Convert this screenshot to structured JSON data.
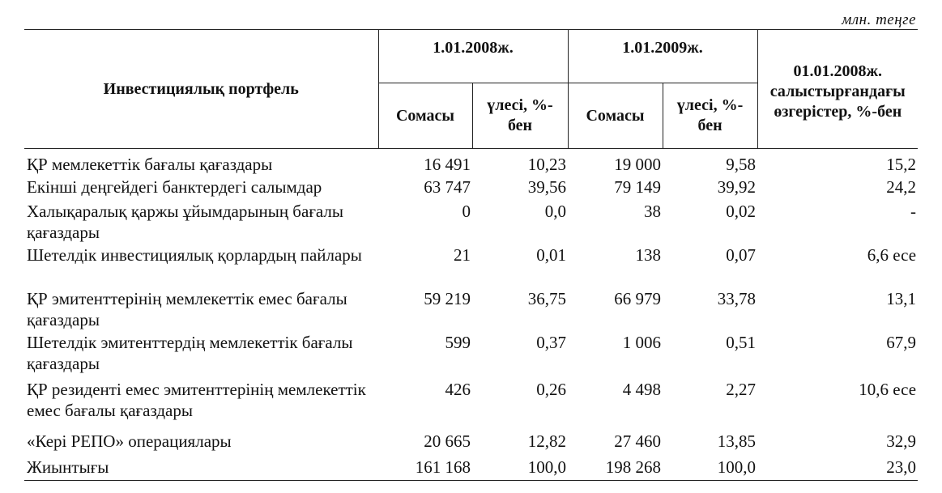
{
  "unit": "млн. теңге",
  "header": {
    "portfolio": "Инвестициялық портфель",
    "period1": "1.01.2008ж.",
    "period2": "1.01.2009ж.",
    "change": "01.01.2008ж. салыстырғандағы өзгерістер, %-бен",
    "amount": "Сомасы",
    "share": "үлесі, %-бен"
  },
  "rows": [
    {
      "name": "ҚР мемлекеттік бағалы қағаздары",
      "a1": "16 491",
      "s1": "10,23",
      "a2": "19 000",
      "s2": "9,58",
      "chg": "15,2"
    },
    {
      "name": "Екінші деңгейдегі банктердегі салымдар",
      "a1": "63 747",
      "s1": "39,56",
      "a2": "79 149",
      "s2": "39,92",
      "chg": "24,2"
    },
    {
      "name": "Халықаралық қаржы ұйымдарының бағалы қағаздары",
      "a1": "0",
      "s1": "0,0",
      "a2": "38",
      "s2": "0,02",
      "chg": "-"
    },
    {
      "name": "Шетелдік инвестициялық қорлардың пайлары",
      "a1": "21",
      "s1": "0,01",
      "a2": "138",
      "s2": "0,07",
      "chg": "6,6 есе"
    },
    {
      "name": "ҚР эмитенттерінің мемлекеттік емес бағалы қағаздары",
      "a1": "59 219",
      "s1": "36,75",
      "a2": "66 979",
      "s2": "33,78",
      "chg": "13,1"
    },
    {
      "name": "Шетелдік эмитенттердің мемлекеттік бағалы қағаздары",
      "a1": "599",
      "s1": "0,37",
      "a2": "1 006",
      "s2": "0,51",
      "chg": "67,9"
    },
    {
      "name": "ҚР резиденті емес эмитенттерінің мемлекеттік емес бағалы қағаздары",
      "a1": "426",
      "s1": "0,26",
      "a2": "4 498",
      "s2": "2,27",
      "chg": "10,6 есе"
    },
    {
      "name": "«Кері РЕПО» операциялары",
      "a1": "20 665",
      "s1": "12,82",
      "a2": "27 460",
      "s2": "13,85",
      "chg": "32,9"
    },
    {
      "name": "Жиынтығы",
      "a1": "161 168",
      "s1": "100,0",
      "a2": "198 268",
      "s2": "100,0",
      "chg": "23,0"
    }
  ]
}
